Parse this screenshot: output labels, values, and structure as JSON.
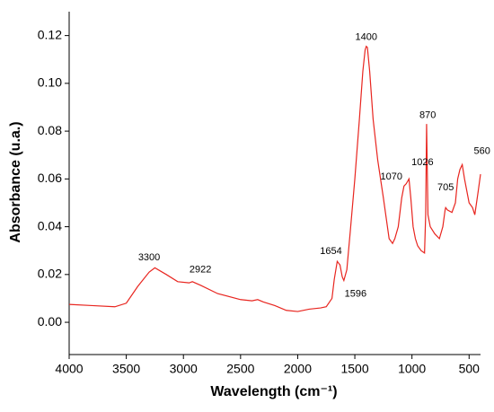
{
  "chart_data": {
    "type": "line",
    "xlabel": "Wavelength (cm⁻¹)",
    "ylabel": "Absorbance (u.a.)",
    "color": "#e8251f",
    "xlim": [
      4000,
      400
    ],
    "ylim": [
      -0.0135,
      0.13
    ],
    "xticks": [
      4000,
      3500,
      3000,
      2500,
      2000,
      1500,
      1000,
      500
    ],
    "yticks": [
      {
        "value": 0,
        "label": "0.00"
      },
      0.02,
      0.04,
      0.06,
      0.08,
      {
        "value": 0.1,
        "label": "0.10"
      },
      0.12
    ],
    "x": [
      4000,
      3800,
      3600,
      3500,
      3400,
      3300,
      3250,
      3150,
      3050,
      2950,
      2922,
      2850,
      2700,
      2500,
      2400,
      2350,
      2300,
      2200,
      2100,
      2000,
      1900,
      1800,
      1750,
      1700,
      1680,
      1654,
      1630,
      1610,
      1596,
      1570,
      1540,
      1500,
      1460,
      1430,
      1410,
      1400,
      1390,
      1370,
      1340,
      1300,
      1250,
      1200,
      1170,
      1150,
      1120,
      1090,
      1070,
      1050,
      1026,
      1010,
      990,
      970,
      950,
      920,
      890,
      880,
      872,
      868,
      860,
      840,
      800,
      760,
      730,
      710,
      705,
      690,
      650,
      620,
      600,
      580,
      560,
      540,
      500,
      470,
      450,
      420,
      400
    ],
    "values": [
      0.0075,
      0.007,
      0.0065,
      0.008,
      0.015,
      0.021,
      0.0228,
      0.02,
      0.017,
      0.0165,
      0.017,
      0.0155,
      0.012,
      0.0095,
      0.009,
      0.0095,
      0.0085,
      0.007,
      0.005,
      0.0045,
      0.0055,
      0.006,
      0.0065,
      0.01,
      0.018,
      0.0255,
      0.024,
      0.019,
      0.0175,
      0.022,
      0.038,
      0.06,
      0.085,
      0.105,
      0.114,
      0.1155,
      0.115,
      0.105,
      0.085,
      0.068,
      0.052,
      0.035,
      0.033,
      0.035,
      0.04,
      0.052,
      0.057,
      0.058,
      0.06,
      0.052,
      0.04,
      0.035,
      0.032,
      0.03,
      0.029,
      0.045,
      0.083,
      0.07,
      0.045,
      0.04,
      0.037,
      0.035,
      0.04,
      0.047,
      0.048,
      0.047,
      0.046,
      0.05,
      0.06,
      0.064,
      0.066,
      0.06,
      0.05,
      0.048,
      0.045,
      0.055,
      0.062
    ],
    "annotations": [
      "3300",
      "2922",
      "1654",
      "1596",
      "1400",
      "1070",
      "1026",
      "870",
      "705",
      "560"
    ]
  }
}
